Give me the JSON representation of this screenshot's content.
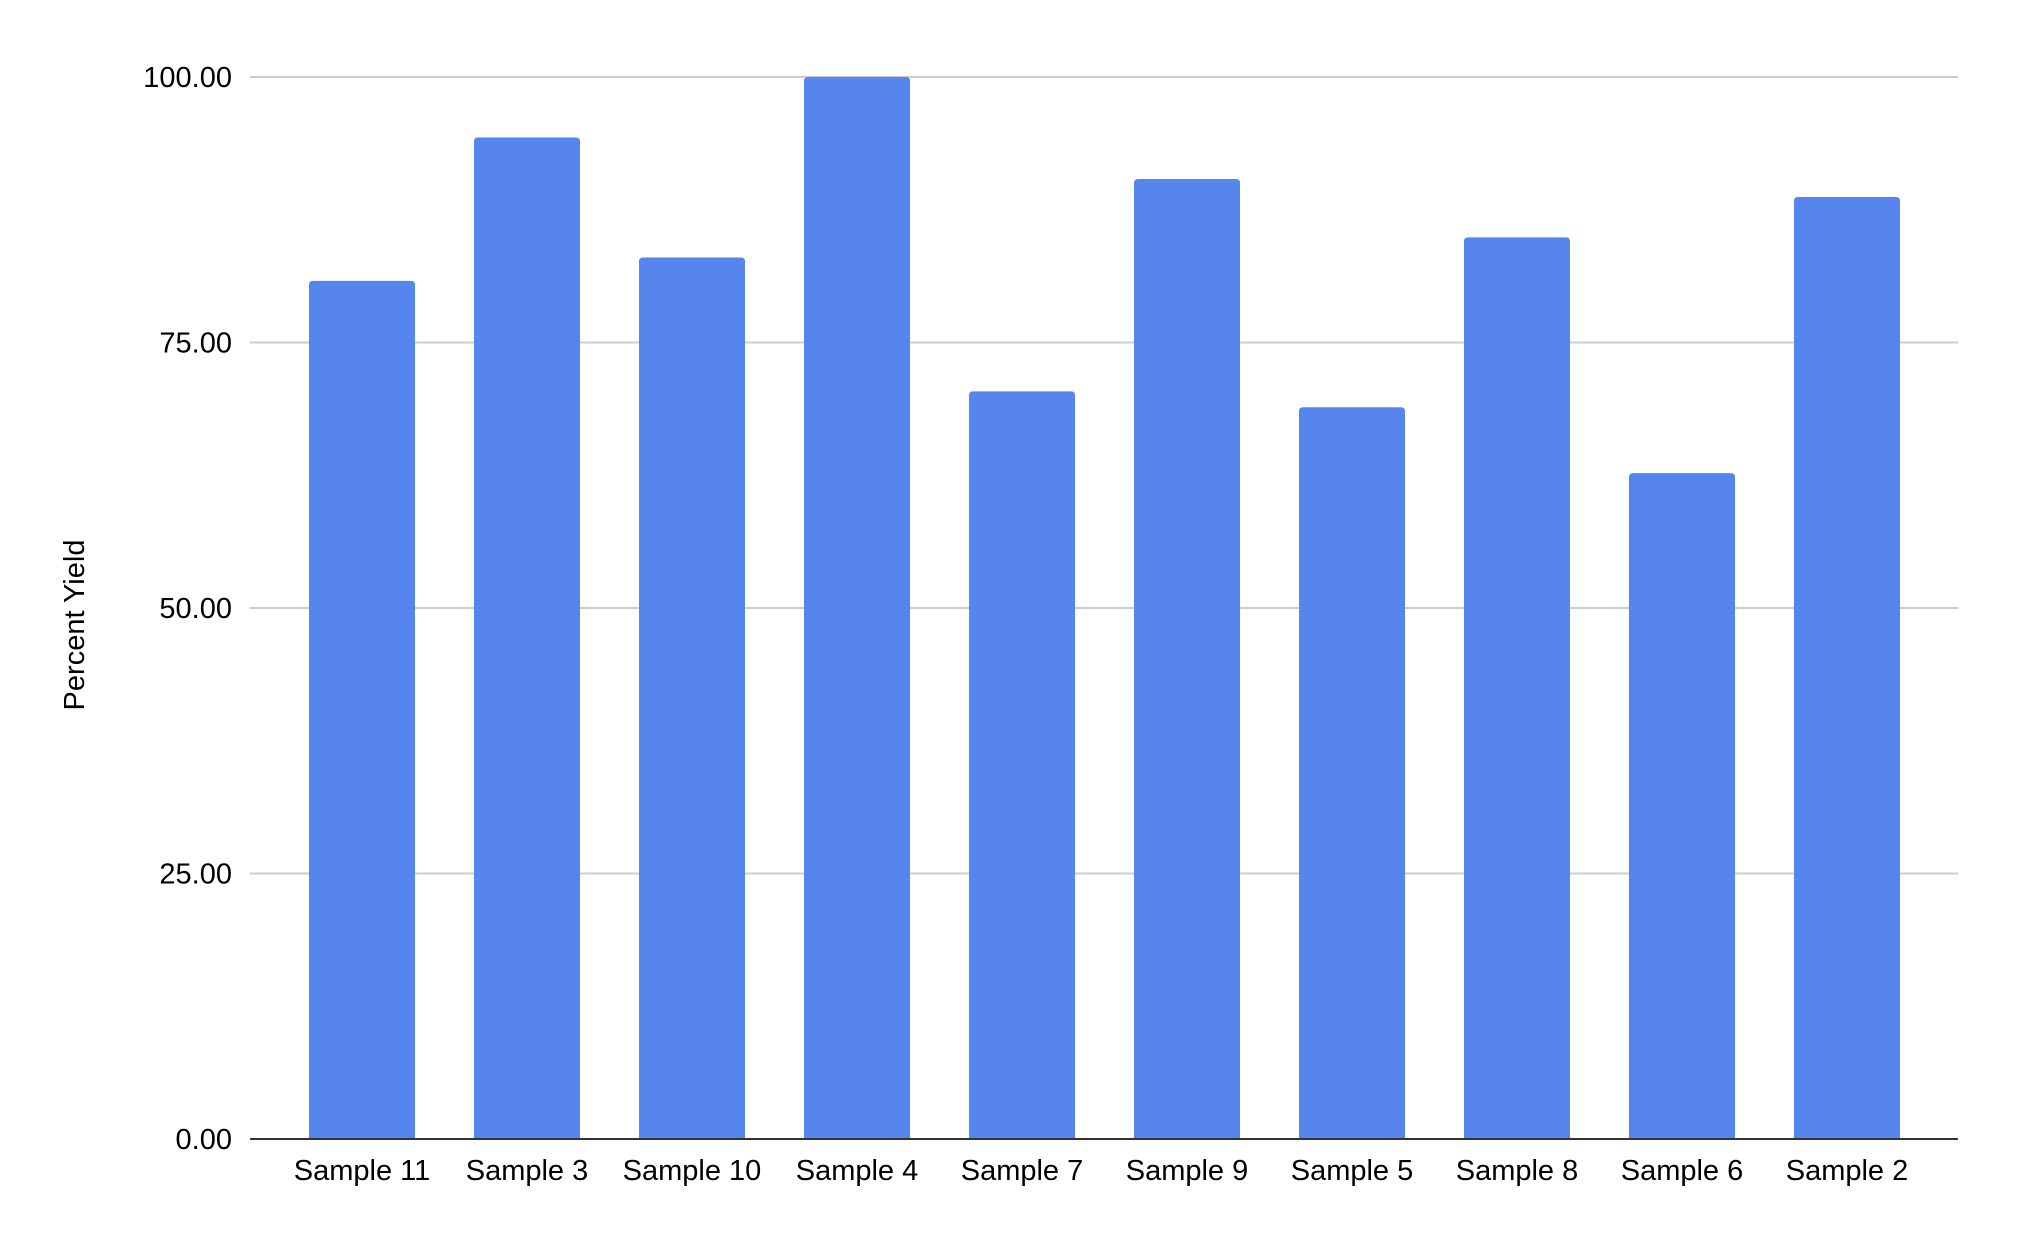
{
  "chart_data": {
    "type": "bar",
    "title": "",
    "xlabel": "",
    "ylabel": "Percent Yield",
    "categories": [
      "Sample 11",
      "Sample 3",
      "Sample 10",
      "Sample 4",
      "Sample 7",
      "Sample 9",
      "Sample 5",
      "Sample 8",
      "Sample 6",
      "Sample 2"
    ],
    "values": [
      80.8,
      94.3,
      83.0,
      100.0,
      70.4,
      90.4,
      68.9,
      84.9,
      62.7,
      88.7
    ],
    "ylim": [
      0,
      100
    ],
    "yticks": [
      "0.00",
      "25.00",
      "50.00",
      "75.00",
      "100.00"
    ],
    "grid": true,
    "legend": "none",
    "bar_color": "#5585ed",
    "grid_color": "#cccccc",
    "axis_color": "#333333"
  }
}
